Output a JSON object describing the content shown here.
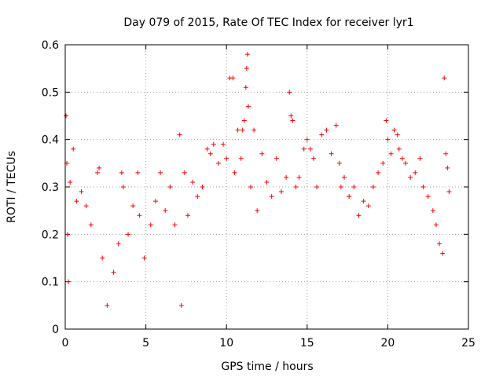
{
  "chart_data": {
    "type": "scatter",
    "title": "Day 079 of 2015, Rate Of TEC Index for receiver lyr1",
    "xlabel": "GPS time / hours",
    "ylabel": "ROTI / TECUs",
    "xlim": [
      0,
      25
    ],
    "ylim": [
      0,
      0.6
    ],
    "xticks": [
      "0",
      "5",
      "10",
      "15",
      "20",
      "25"
    ],
    "yticks": [
      "0",
      "0.1",
      "0.2",
      "0.3",
      "0.4",
      "0.5",
      "0.6"
    ],
    "grid": true,
    "marker": "+",
    "series": [
      {
        "name": "ROTI",
        "color": "#ff0000",
        "x": [
          0.05,
          0.1,
          0.15,
          0.2,
          0.3,
          0.5,
          0.7,
          1.0,
          1.3,
          1.6,
          2.0,
          2.1,
          2.3,
          2.6,
          3.0,
          3.3,
          3.5,
          3.6,
          3.9,
          4.2,
          4.5,
          4.6,
          4.9,
          5.3,
          5.6,
          5.9,
          6.2,
          6.5,
          6.8,
          7.1,
          7.2,
          7.4,
          7.6,
          7.9,
          8.2,
          8.5,
          8.8,
          9.0,
          9.2,
          9.5,
          9.8,
          10.0,
          10.2,
          10.4,
          10.5,
          10.7,
          10.9,
          11.0,
          11.1,
          11.2,
          11.25,
          11.3,
          11.35,
          11.5,
          11.7,
          11.9,
          12.2,
          12.5,
          12.8,
          13.1,
          13.4,
          13.7,
          13.9,
          14.0,
          14.1,
          14.3,
          14.5,
          14.8,
          15.0,
          15.2,
          15.4,
          15.6,
          15.9,
          16.2,
          16.5,
          16.8,
          17.0,
          17.1,
          17.3,
          17.6,
          17.9,
          18.2,
          18.5,
          18.8,
          19.1,
          19.4,
          19.7,
          19.9,
          20.0,
          20.2,
          20.4,
          20.6,
          20.7,
          20.9,
          21.1,
          21.4,
          21.7,
          22.0,
          22.2,
          22.5,
          22.8,
          23.0,
          23.2,
          23.4,
          23.5,
          23.6,
          23.7,
          23.8
        ],
        "y": [
          0.45,
          0.35,
          0.2,
          0.1,
          0.31,
          0.38,
          0.27,
          0.29,
          0.26,
          0.22,
          0.33,
          0.34,
          0.15,
          0.05,
          0.12,
          0.18,
          0.33,
          0.3,
          0.2,
          0.26,
          0.33,
          0.24,
          0.15,
          0.22,
          0.27,
          0.33,
          0.25,
          0.3,
          0.22,
          0.41,
          0.05,
          0.33,
          0.24,
          0.31,
          0.28,
          0.3,
          0.38,
          0.37,
          0.39,
          0.35,
          0.39,
          0.36,
          0.53,
          0.53,
          0.33,
          0.42,
          0.36,
          0.42,
          0.44,
          0.51,
          0.55,
          0.58,
          0.47,
          0.3,
          0.42,
          0.25,
          0.37,
          0.31,
          0.28,
          0.36,
          0.29,
          0.32,
          0.5,
          0.45,
          0.44,
          0.3,
          0.32,
          0.38,
          0.4,
          0.38,
          0.36,
          0.3,
          0.41,
          0.42,
          0.37,
          0.43,
          0.35,
          0.3,
          0.32,
          0.28,
          0.3,
          0.24,
          0.27,
          0.26,
          0.3,
          0.33,
          0.35,
          0.44,
          0.4,
          0.37,
          0.42,
          0.41,
          0.38,
          0.36,
          0.35,
          0.32,
          0.33,
          0.36,
          0.3,
          0.28,
          0.25,
          0.22,
          0.18,
          0.16,
          0.53,
          0.37,
          0.34,
          0.29
        ]
      }
    ]
  }
}
